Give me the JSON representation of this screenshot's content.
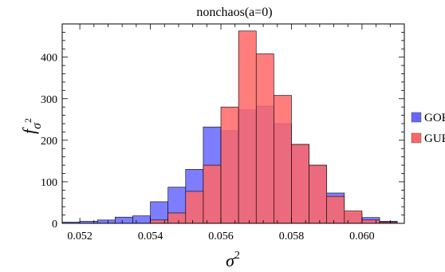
{
  "chart_data": {
    "type": "bar",
    "title": "nonchaos(a=0)",
    "xlabel_base": "σ",
    "xlabel_sup": "2",
    "ylabel_base": "f",
    "ylabel_sub_base": "σ",
    "ylabel_sub_sup": "2",
    "xlim": [
      0.0515,
      0.0612
    ],
    "ylim": [
      0,
      480
    ],
    "xticks": [
      0.052,
      0.054,
      0.056,
      0.058,
      0.06
    ],
    "xtick_labels": [
      "0.052",
      "0.054",
      "0.056",
      "0.058",
      "0.060"
    ],
    "yticks": [
      0,
      100,
      200,
      300,
      400
    ],
    "ytick_labels": [
      "0",
      "100",
      "200",
      "300",
      "400"
    ],
    "bin_edges": [
      0.0515,
      0.052,
      0.0525,
      0.053,
      0.0535,
      0.054,
      0.0545,
      0.055,
      0.0555,
      0.056,
      0.0565,
      0.057,
      0.0575,
      0.058,
      0.0585,
      0.059,
      0.0595,
      0.06,
      0.0605,
      0.061
    ],
    "series": [
      {
        "name": "GOE",
        "color": "#6666ff",
        "values": [
          3,
          5,
          8,
          15,
          18,
          52,
          87,
          130,
          232,
          223,
          273,
          282,
          240,
          190,
          140,
          73,
          25,
          14,
          5
        ]
      },
      {
        "name": "GUE",
        "color": "#ff6666",
        "values": [
          0,
          0,
          0,
          0,
          0,
          8,
          25,
          77,
          140,
          280,
          463,
          408,
          308,
          190,
          140,
          65,
          30,
          8,
          3
        ]
      }
    ],
    "overlap_color": "#b0306e",
    "legend_position": "right",
    "grid": false
  }
}
